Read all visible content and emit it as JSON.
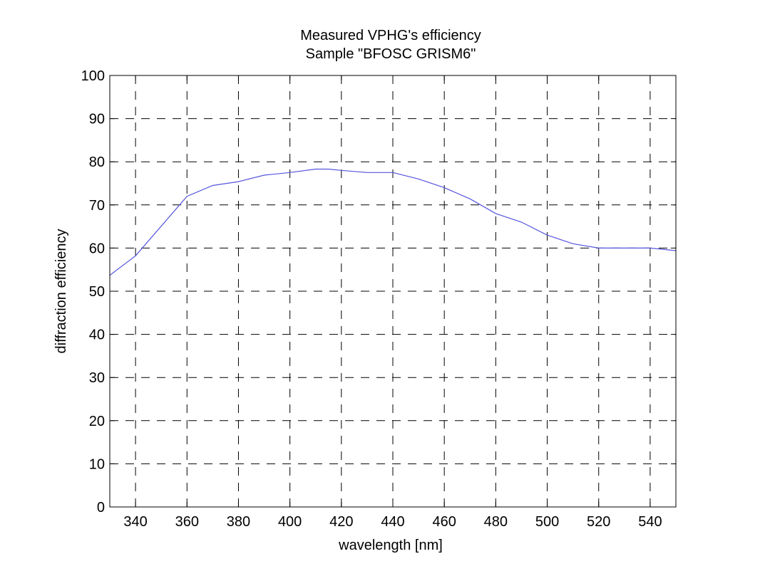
{
  "chart_data": {
    "type": "line",
    "title": "Measured VPHG's efficiency",
    "subtitle": "Sample \"BFOSC GRISM6\"",
    "xlabel": "wavelength [nm]",
    "ylabel": "diffraction efficiency",
    "xlim": [
      330,
      550
    ],
    "ylim": [
      0,
      100
    ],
    "xticks": [
      340,
      360,
      380,
      400,
      420,
      440,
      460,
      480,
      500,
      520,
      540
    ],
    "yticks": [
      0,
      10,
      20,
      30,
      40,
      50,
      60,
      70,
      80,
      90,
      100
    ],
    "grid": true,
    "line_color": "#5555dd",
    "series": [
      {
        "name": "efficiency",
        "x": [
          330,
          340,
          360,
          370,
          380,
          390,
          400,
          410,
          415,
          420,
          430,
          440,
          450,
          460,
          470,
          480,
          490,
          500,
          510,
          520,
          530,
          540,
          550
        ],
        "y": [
          53.7,
          58.2,
          72.0,
          74.5,
          75.4,
          76.9,
          77.5,
          78.3,
          78.3,
          78.0,
          77.5,
          77.5,
          76.0,
          74.0,
          71.4,
          68.0,
          66.0,
          63.0,
          61.0,
          60.0,
          60.0,
          60.0,
          59.4
        ]
      }
    ]
  }
}
